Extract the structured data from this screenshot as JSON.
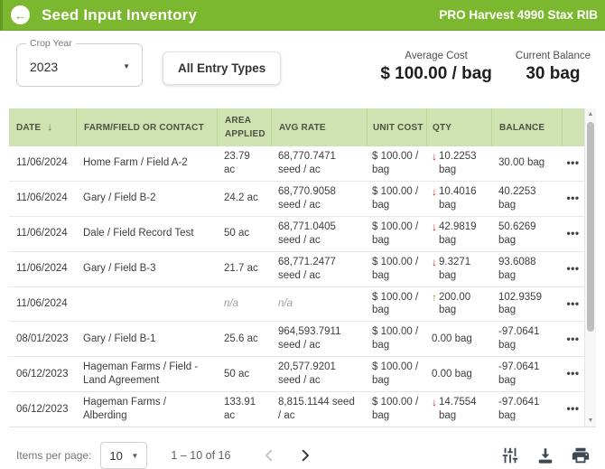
{
  "colors": {
    "brand_green": "#7cb82f",
    "table_header_bg": "#cfe3b2",
    "qty_down_red": "#b3261e",
    "qty_up_green": "#63ac29"
  },
  "topbar": {
    "title": "Seed Input Inventory",
    "product": "PRO Harvest 4990 Stax RIB"
  },
  "filters": {
    "crop_year_label": "Crop Year",
    "crop_year_value": "2023",
    "entry_types_button": "All Entry Types"
  },
  "stats": {
    "average_cost_label": "Average Cost",
    "average_cost_value": "$ 100.00 / bag",
    "current_balance_label": "Current Balance",
    "current_balance_value": "30 bag"
  },
  "table": {
    "columns": [
      "DATE",
      "FARM/FIELD OR CONTACT",
      "AREA APPLIED",
      "AVG RATE",
      "UNIT COST",
      "QTY",
      "BALANCE"
    ],
    "sort_column": "DATE",
    "sort_direction": "desc",
    "row_menu": "•••",
    "rows": [
      {
        "date": "11/06/2024",
        "farm": "Home Farm / Field A-2",
        "area": "23.79 ac",
        "rate": "68,770.7471 seed / ac",
        "unit": "$ 100.00 / bag",
        "qty": "10.2253 bag",
        "qty_dir": "down",
        "balance": "30.00 bag"
      },
      {
        "date": "11/06/2024",
        "farm": "Gary / Field B-2",
        "area": "24.2 ac",
        "rate": "68,770.9058 seed / ac",
        "unit": "$ 100.00 / bag",
        "qty": "10.4016 bag",
        "qty_dir": "down",
        "balance": "40.2253 bag"
      },
      {
        "date": "11/06/2024",
        "farm": "Dale / Field Record Test",
        "area": "50 ac",
        "rate": "68,771.0405 seed / ac",
        "unit": "$ 100.00 / bag",
        "qty": "42.9819 bag",
        "qty_dir": "down",
        "balance": "50.6269 bag"
      },
      {
        "date": "11/06/2024",
        "farm": "Gary / Field B-3",
        "area": "21.7 ac",
        "rate": "68,771.2477 seed / ac",
        "unit": "$ 100.00 / bag",
        "qty": "9.3271 bag",
        "qty_dir": "down",
        "balance": "93.6088 bag"
      },
      {
        "date": "11/06/2024",
        "farm": "",
        "area": "n/a",
        "rate": "n/a",
        "unit": "$ 100.00 / bag",
        "qty": "200.00 bag",
        "qty_dir": "up",
        "balance": "102.9359 bag"
      },
      {
        "date": "08/01/2023",
        "farm": "Gary / Field B-1",
        "area": "25.6 ac",
        "rate": "964,593.7911 seed / ac",
        "unit": "$ 100.00 / bag",
        "qty": "0.00 bag",
        "qty_dir": "none",
        "balance": "-97.0641 bag"
      },
      {
        "date": "06/12/2023",
        "farm": "Hageman Farms / Field - Land Agreement",
        "area": "50 ac",
        "rate": "20,577.9201 seed / ac",
        "unit": "$ 100.00 / bag",
        "qty": "0.00 bag",
        "qty_dir": "none",
        "balance": "-97.0641 bag"
      },
      {
        "date": "06/12/2023",
        "farm": "Hageman Farms / Alberding",
        "area": "133.91 ac",
        "rate": "8,815.1144 seed / ac",
        "unit": "$ 100.00 / bag",
        "qty": "14.7554 bag",
        "qty_dir": "down",
        "balance": "-97.0641 bag"
      }
    ]
  },
  "icons": {
    "back": "←",
    "sort_desc": "↓",
    "caret_down": "▼",
    "arrow_down": "↓",
    "arrow_up": "↑",
    "scroll_up": "▲",
    "scroll_down": "▼"
  },
  "footer": {
    "items_per_page_label": "Items per page:",
    "items_per_page_value": "10",
    "range_text": "1 – 10 of 16",
    "icon_names": [
      "filter-sliders-icon",
      "download-icon",
      "print-icon"
    ]
  }
}
